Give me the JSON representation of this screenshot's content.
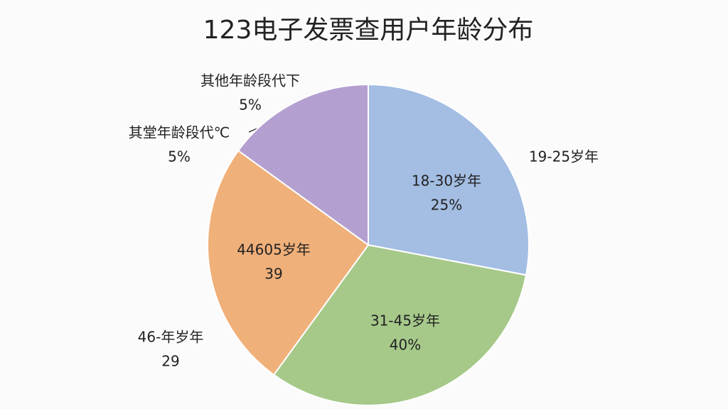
{
  "chart_data": {
    "type": "pie",
    "title": "123电子发票查用户年龄分布",
    "values": [
      28,
      32,
      25,
      15
    ],
    "colors": [
      "#a3bde3",
      "#a6c98a",
      "#f0b07a",
      "#b4a0d0"
    ],
    "annotations": [
      {
        "lines": [
          "其他年龄段代下",
          "5%"
        ]
      },
      {
        "lines": [
          "其堂年龄段代℃",
          "5%"
        ]
      },
      {
        "lines": [
          "19-25岁年"
        ]
      },
      {
        "lines": [
          "18-30岁年",
          "25%"
        ]
      },
      {
        "lines": [
          "44605岁年",
          "39"
        ]
      },
      {
        "lines": [
          "31-45岁年",
          "40%"
        ]
      },
      {
        "lines": [
          "46-年岁年",
          "29"
        ]
      }
    ]
  }
}
